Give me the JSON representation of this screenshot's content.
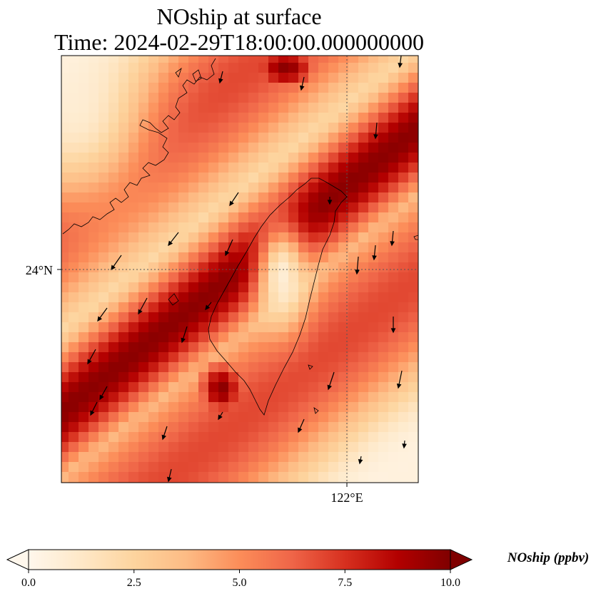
{
  "title": {
    "line1": "NOship at surface",
    "line2": "Time: 2024-02-29T18:00:00.000000000"
  },
  "map": {
    "lat_label": "24°N",
    "lon_label": "122°E",
    "colormap": "OrRd",
    "gridlines": "dotted"
  },
  "colorbar": {
    "label": "NOship (ppbv)",
    "ticks": [
      "0.0",
      "2.5",
      "5.0",
      "7.5",
      "10.0"
    ],
    "min": 0,
    "max": 10,
    "colors": [
      "#fff7ec",
      "#fee8c8",
      "#fdd49e",
      "#fdbb84",
      "#fc8d59",
      "#ef6548",
      "#d7301f",
      "#b30000",
      "#7f0000"
    ]
  }
}
